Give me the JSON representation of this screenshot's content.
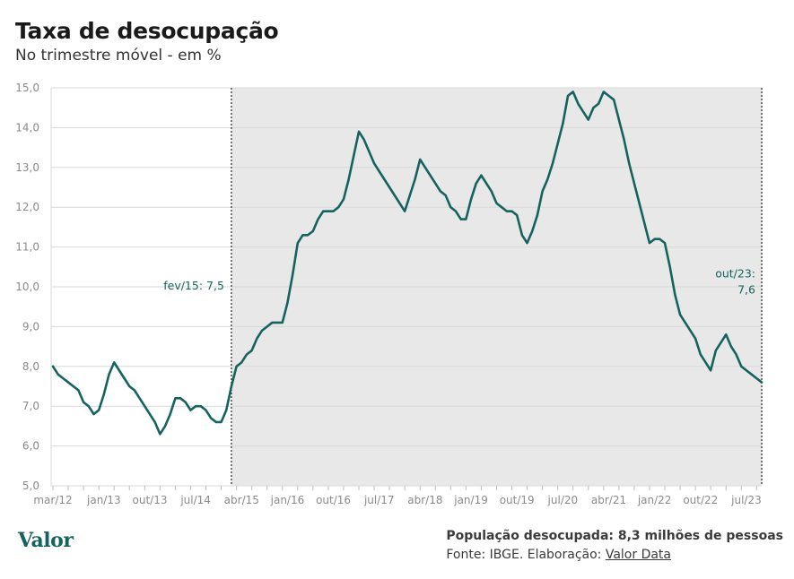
{
  "header": {
    "title": "Taxa de desocupação",
    "subtitle": "No trimestre móvel - em %"
  },
  "footer": {
    "note": "População desocupada: 8,3 milhões de pessoas",
    "source_prefix": "Fonte: IBGE. Elaboração:",
    "source_link": "Valor Data",
    "logo": "Valor"
  },
  "colors": {
    "line": "#15635f",
    "shade": "#e8e8e8",
    "grid": "#d9d9d9"
  },
  "chart_data": {
    "type": "line",
    "title": "Taxa de desocupação",
    "subtitle": "No trimestre móvel - em %",
    "xlabel": "",
    "ylabel": "",
    "ylim": [
      5.0,
      15.0
    ],
    "ytick_labels": [
      "5,0",
      "6,0",
      "7,0",
      "8,0",
      "9,0",
      "10,0",
      "11,0",
      "12,0",
      "13,0",
      "14,0",
      "15,0"
    ],
    "xtick_labels": [
      "mar/12",
      "jan/13",
      "out/13",
      "jul/14",
      "abr/15",
      "jan/16",
      "out/16",
      "jul/17",
      "abr/18",
      "jan/19",
      "out/19",
      "jul/20",
      "abr/21",
      "jan/22",
      "out/22",
      "jul/23"
    ],
    "grid": true,
    "shaded_period": [
      "fev/15",
      "out/23"
    ],
    "annotations": [
      {
        "label": "fev/15: 7,5",
        "x": "fev/15",
        "value": 7.5
      },
      {
        "label_lines": [
          "out/23:",
          "7,6"
        ],
        "x": "out/23",
        "value": 7.6
      }
    ],
    "x_start": "mar/12",
    "x_end": "out/23",
    "series": [
      {
        "values": [
          8.0,
          7.8,
          7.7,
          7.6,
          7.5,
          7.4,
          7.1,
          7.0,
          6.8,
          6.9,
          7.3,
          7.8,
          8.1,
          7.9,
          7.7,
          7.5,
          7.4,
          7.2,
          7.0,
          6.8,
          6.6,
          6.3,
          6.5,
          6.8,
          7.2,
          7.2,
          7.1,
          6.9,
          7.0,
          7.0,
          6.9,
          6.7,
          6.6,
          6.6,
          6.9,
          7.5,
          8.0,
          8.1,
          8.3,
          8.4,
          8.7,
          8.9,
          9.0,
          9.1,
          9.1,
          9.1,
          9.6,
          10.3,
          11.1,
          11.3,
          11.3,
          11.4,
          11.7,
          11.9,
          11.9,
          11.9,
          12.0,
          12.2,
          12.7,
          13.3,
          13.9,
          13.7,
          13.4,
          13.1,
          12.9,
          12.7,
          12.5,
          12.3,
          12.1,
          11.9,
          12.3,
          12.7,
          13.2,
          13.0,
          12.8,
          12.6,
          12.4,
          12.3,
          12.0,
          11.9,
          11.7,
          11.7,
          12.2,
          12.6,
          12.8,
          12.6,
          12.4,
          12.1,
          12.0,
          11.9,
          11.9,
          11.8,
          11.3,
          11.1,
          11.4,
          11.8,
          12.4,
          12.7,
          13.1,
          13.6,
          14.1,
          14.8,
          14.9,
          14.6,
          14.4,
          14.2,
          14.5,
          14.6,
          14.9,
          14.8,
          14.7,
          14.2,
          13.7,
          13.1,
          12.6,
          12.1,
          11.6,
          11.1,
          11.2,
          11.2,
          11.1,
          10.5,
          9.8,
          9.3,
          9.1,
          8.9,
          8.7,
          8.3,
          8.1,
          7.9,
          8.4,
          8.6,
          8.8,
          8.5,
          8.3,
          8.0,
          7.9,
          7.8,
          7.7,
          7.6
        ]
      }
    ]
  }
}
